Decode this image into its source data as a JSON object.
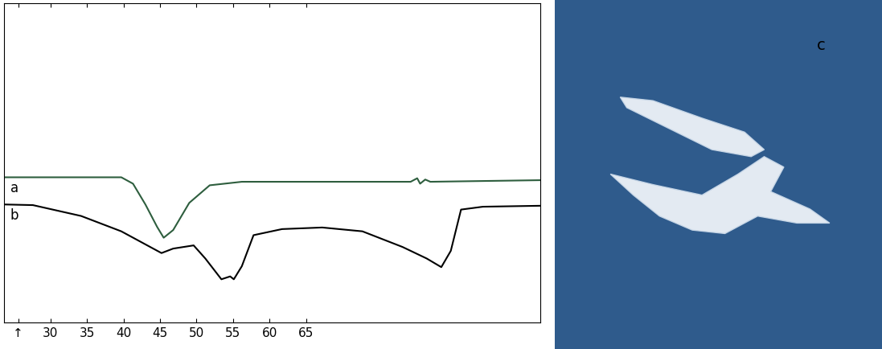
{
  "chart_data": {
    "type": "line",
    "series": [
      {
        "name": "a",
        "color": "#2e5e3e",
        "x": [
          23.7,
          39.7,
          41.3,
          43.0,
          44.6,
          45.5,
          46.8,
          49.0,
          51.8,
          56.2,
          79.3,
          80.2,
          80.6,
          81.3,
          82.0,
          97.1
        ],
        "values": [
          45.5,
          45.5,
          43.5,
          37.0,
          30.0,
          26.6,
          29.0,
          37.5,
          43.0,
          44.1,
          44.1,
          45.2,
          43.5,
          44.8,
          44.1,
          44.6
        ]
      },
      {
        "name": "b",
        "color": "#000000",
        "x": [
          23.7,
          27.6,
          34.2,
          39.7,
          45.2,
          46.8,
          49.6,
          51.2,
          53.4,
          54.6,
          55.1,
          56.2,
          57.8,
          61.7,
          67.2,
          72.7,
          78.2,
          81.5,
          83.5,
          84.8,
          86.2,
          89.2,
          97.1
        ],
        "values": [
          37.0,
          36.8,
          33.4,
          28.6,
          21.8,
          23.2,
          24.2,
          20.1,
          13.6,
          14.5,
          13.6,
          17.7,
          27.4,
          29.3,
          29.8,
          28.6,
          23.7,
          20.1,
          17.4,
          22.5,
          35.4,
          36.3,
          36.6
        ]
      }
    ],
    "xlim": [
      23.7,
      97.1
    ],
    "ylim": [
      0,
      100
    ],
    "xticks": [
      {
        "value": 25.6,
        "label": "↑"
      },
      30,
      35,
      40,
      45,
      50,
      55,
      60,
      65
    ],
    "tick_labels": "x"
  },
  "image_panel": {
    "label": "c"
  }
}
